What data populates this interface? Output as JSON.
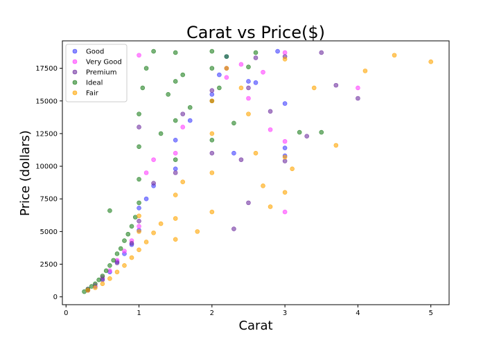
{
  "chart_data": {
    "type": "scatter",
    "title": "Carat vs Price($)",
    "xlabel": "Carat",
    "ylabel": "Price (dollars)",
    "xlim": [
      -0.05,
      5.25
    ],
    "ylim": [
      -600,
      19600
    ],
    "xticks": [
      0,
      1,
      2,
      3,
      4,
      5
    ],
    "yticks": [
      0,
      2500,
      5000,
      7500,
      10000,
      12500,
      15000,
      17500
    ],
    "grid": false,
    "legend_position": "top-left",
    "series": [
      {
        "name": "Good",
        "color": "#4040ff",
        "points": [
          [
            0.3,
            500
          ],
          [
            0.4,
            800
          ],
          [
            0.5,
            1400
          ],
          [
            0.6,
            1900
          ],
          [
            0.7,
            2700
          ],
          [
            0.8,
            3300
          ],
          [
            0.9,
            4000
          ],
          [
            1.0,
            5100
          ],
          [
            1.0,
            6800
          ],
          [
            1.1,
            7500
          ],
          [
            1.2,
            8500
          ],
          [
            1.5,
            9800
          ],
          [
            1.5,
            12000
          ],
          [
            1.7,
            13500
          ],
          [
            2.0,
            15500
          ],
          [
            2.1,
            17000
          ],
          [
            2.2,
            18400
          ],
          [
            2.3,
            11000
          ],
          [
            2.5,
            16500
          ],
          [
            2.6,
            16400
          ],
          [
            3.0,
            14800
          ],
          [
            3.0,
            11400
          ],
          [
            3.0,
            10800
          ],
          [
            2.9,
            18800
          ]
        ]
      },
      {
        "name": "Very Good",
        "color": "#ff40ff",
        "points": [
          [
            0.3,
            600
          ],
          [
            0.4,
            900
          ],
          [
            0.5,
            1500
          ],
          [
            0.6,
            2000
          ],
          [
            0.7,
            2800
          ],
          [
            0.8,
            3500
          ],
          [
            0.9,
            4300
          ],
          [
            1.0,
            5400
          ],
          [
            1.0,
            18500
          ],
          [
            1.1,
            9500
          ],
          [
            1.2,
            10500
          ],
          [
            1.5,
            11000
          ],
          [
            1.6,
            13000
          ],
          [
            2.0,
            15000
          ],
          [
            2.2,
            16800
          ],
          [
            2.4,
            17800
          ],
          [
            2.5,
            15200
          ],
          [
            2.7,
            17200
          ],
          [
            2.8,
            12800
          ],
          [
            3.0,
            6500
          ],
          [
            3.0,
            11900
          ],
          [
            3.0,
            18700
          ],
          [
            4.0,
            16000
          ]
        ]
      },
      {
        "name": "Premium",
        "color": "#7030a0",
        "points": [
          [
            0.3,
            500
          ],
          [
            0.5,
            1300
          ],
          [
            0.7,
            2600
          ],
          [
            0.9,
            4100
          ],
          [
            1.0,
            5800
          ],
          [
            1.0,
            13000
          ],
          [
            1.2,
            8700
          ],
          [
            1.5,
            9500
          ],
          [
            1.6,
            14000
          ],
          [
            2.0,
            11000
          ],
          [
            2.0,
            15800
          ],
          [
            2.2,
            17500
          ],
          [
            2.4,
            10500
          ],
          [
            2.5,
            16000
          ],
          [
            2.6,
            18300
          ],
          [
            2.8,
            14200
          ],
          [
            3.0,
            18400
          ],
          [
            3.0,
            10400
          ],
          [
            3.3,
            12300
          ],
          [
            3.5,
            18700
          ],
          [
            3.7,
            16200
          ],
          [
            4.0,
            15200
          ],
          [
            2.5,
            7200
          ],
          [
            2.3,
            5200
          ]
        ]
      },
      {
        "name": "Ideal",
        "color": "#208020",
        "points": [
          [
            0.25,
            400
          ],
          [
            0.3,
            600
          ],
          [
            0.35,
            800
          ],
          [
            0.4,
            1000
          ],
          [
            0.45,
            1300
          ],
          [
            0.5,
            1600
          ],
          [
            0.55,
            2000
          ],
          [
            0.6,
            2400
          ],
          [
            0.65,
            2800
          ],
          [
            0.7,
            3300
          ],
          [
            0.75,
            3700
          ],
          [
            0.8,
            4300
          ],
          [
            0.85,
            4800
          ],
          [
            0.9,
            5400
          ],
          [
            0.95,
            6100
          ],
          [
            1.0,
            7200
          ],
          [
            1.0,
            9000
          ],
          [
            1.0,
            11500
          ],
          [
            1.0,
            14000
          ],
          [
            1.05,
            16000
          ],
          [
            1.1,
            17500
          ],
          [
            1.2,
            18800
          ],
          [
            1.3,
            12500
          ],
          [
            1.4,
            15500
          ],
          [
            1.5,
            10500
          ],
          [
            1.5,
            13500
          ],
          [
            1.5,
            16500
          ],
          [
            1.5,
            18700
          ],
          [
            1.6,
            17000
          ],
          [
            1.7,
            14500
          ],
          [
            2.0,
            12000
          ],
          [
            2.0,
            15000
          ],
          [
            2.0,
            17500
          ],
          [
            2.0,
            18800
          ],
          [
            2.1,
            16000
          ],
          [
            2.2,
            18400
          ],
          [
            2.3,
            13300
          ],
          [
            2.5,
            17600
          ],
          [
            2.6,
            18700
          ],
          [
            3.2,
            12600
          ],
          [
            3.5,
            12600
          ],
          [
            0.6,
            6600
          ]
        ]
      },
      {
        "name": "Fair",
        "color": "#ffa500",
        "points": [
          [
            0.3,
            500
          ],
          [
            0.4,
            700
          ],
          [
            0.5,
            1000
          ],
          [
            0.6,
            1400
          ],
          [
            0.7,
            1900
          ],
          [
            0.8,
            2400
          ],
          [
            0.9,
            3000
          ],
          [
            1.0,
            3600
          ],
          [
            1.0,
            5000
          ],
          [
            1.0,
            6200
          ],
          [
            1.1,
            4200
          ],
          [
            1.2,
            4900
          ],
          [
            1.3,
            5600
          ],
          [
            1.5,
            4400
          ],
          [
            1.5,
            6000
          ],
          [
            1.5,
            7800
          ],
          [
            1.6,
            8800
          ],
          [
            1.8,
            5000
          ],
          [
            2.0,
            6500
          ],
          [
            2.0,
            9500
          ],
          [
            2.0,
            12500
          ],
          [
            2.0,
            15000
          ],
          [
            2.2,
            17500
          ],
          [
            2.4,
            16000
          ],
          [
            2.5,
            14000
          ],
          [
            2.6,
            11000
          ],
          [
            2.7,
            8500
          ],
          [
            2.8,
            6900
          ],
          [
            3.0,
            8000
          ],
          [
            3.0,
            10700
          ],
          [
            3.0,
            18200
          ],
          [
            3.1,
            9800
          ],
          [
            3.4,
            16000
          ],
          [
            3.7,
            11600
          ],
          [
            4.1,
            17300
          ],
          [
            4.5,
            18500
          ],
          [
            5.0,
            18000
          ]
        ]
      }
    ]
  }
}
